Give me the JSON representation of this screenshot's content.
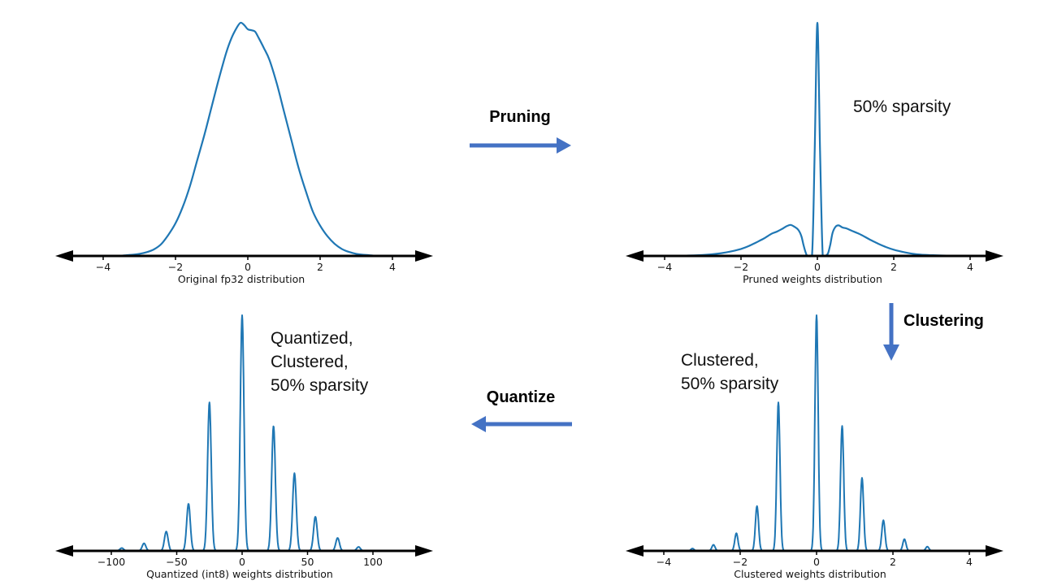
{
  "page": {
    "background": "#ffffff"
  },
  "colors": {
    "curve": "#1f77b4",
    "flow_arrow": "#4472c4",
    "axis": "#000000",
    "text": "#111111"
  },
  "flow": {
    "pruning_label": "Pruning",
    "clustering_label": "Clustering",
    "quantize_label": "Quantize"
  },
  "chart_data": [
    {
      "id": "original_fp32",
      "type": "line",
      "title": "Original fp32 distribution",
      "xlabel": "Original fp32 distribution",
      "xtick_values": [
        -4,
        -2,
        0,
        2,
        4
      ],
      "xtick_labels": [
        "−4",
        "−2",
        "0",
        "2",
        "4"
      ],
      "xlim": [
        -4.8,
        4.8
      ],
      "ylim": [
        0,
        1.05
      ],
      "grid": false,
      "legend": "none",
      "points": [
        [
          -4.5,
          0
        ],
        [
          -3.6,
          0.001
        ],
        [
          -3.3,
          0.004
        ],
        [
          -3.0,
          0.009
        ],
        [
          -2.8,
          0.016
        ],
        [
          -2.6,
          0.028
        ],
        [
          -2.4,
          0.05
        ],
        [
          -2.2,
          0.09
        ],
        [
          -2.0,
          0.14
        ],
        [
          -1.8,
          0.21
        ],
        [
          -1.6,
          0.3
        ],
        [
          -1.4,
          0.41
        ],
        [
          -1.2,
          0.52
        ],
        [
          -1.0,
          0.64
        ],
        [
          -0.8,
          0.76
        ],
        [
          -0.6,
          0.87
        ],
        [
          -0.45,
          0.935
        ],
        [
          -0.3,
          0.98
        ],
        [
          -0.2,
          1.0
        ],
        [
          -0.1,
          0.99
        ],
        [
          0.0,
          0.972
        ],
        [
          0.1,
          0.968
        ],
        [
          0.2,
          0.962
        ],
        [
          0.3,
          0.935
        ],
        [
          0.45,
          0.89
        ],
        [
          0.6,
          0.84
        ],
        [
          0.8,
          0.74
        ],
        [
          1.0,
          0.62
        ],
        [
          1.2,
          0.5
        ],
        [
          1.4,
          0.38
        ],
        [
          1.6,
          0.28
        ],
        [
          1.8,
          0.19
        ],
        [
          2.0,
          0.13
        ],
        [
          2.2,
          0.085
        ],
        [
          2.4,
          0.052
        ],
        [
          2.6,
          0.03
        ],
        [
          2.8,
          0.017
        ],
        [
          3.0,
          0.009
        ],
        [
          3.3,
          0.004
        ],
        [
          3.6,
          0.001
        ],
        [
          4.5,
          0
        ]
      ]
    },
    {
      "id": "pruned",
      "type": "line",
      "title": "Pruned weights distribution",
      "xlabel": "Pruned weights distribution",
      "annotation": "50% sparsity",
      "xtick_values": [
        -4,
        -2,
        0,
        2,
        4
      ],
      "xtick_labels": [
        "−4",
        "−2",
        "0",
        "2",
        "4"
      ],
      "xlim": [
        -5,
        5
      ],
      "ylim": [
        0,
        1.05
      ],
      "grid": false,
      "legend": "none",
      "points": [
        [
          -4.6,
          0
        ],
        [
          -3.5,
          0.001
        ],
        [
          -3.0,
          0.004
        ],
        [
          -2.6,
          0.01
        ],
        [
          -2.3,
          0.018
        ],
        [
          -2.0,
          0.03
        ],
        [
          -1.8,
          0.042
        ],
        [
          -1.6,
          0.058
        ],
        [
          -1.4,
          0.075
        ],
        [
          -1.2,
          0.095
        ],
        [
          -1.05,
          0.105
        ],
        [
          -0.9,
          0.118
        ],
        [
          -0.8,
          0.128
        ],
        [
          -0.7,
          0.133
        ],
        [
          -0.6,
          0.125
        ],
        [
          -0.5,
          0.112
        ],
        [
          -0.42,
          0.085
        ],
        [
          -0.36,
          0.045
        ],
        [
          -0.3,
          0.012
        ],
        [
          -0.26,
          0.001
        ],
        [
          -0.14,
          0.001
        ],
        [
          -0.07,
          0.45
        ],
        [
          0.0,
          1.0
        ],
        [
          0.07,
          0.45
        ],
        [
          0.14,
          0.001
        ],
        [
          0.22,
          0.001
        ],
        [
          0.28,
          0.012
        ],
        [
          0.34,
          0.05
        ],
        [
          0.4,
          0.1
        ],
        [
          0.48,
          0.126
        ],
        [
          0.56,
          0.131
        ],
        [
          0.66,
          0.122
        ],
        [
          0.76,
          0.118
        ],
        [
          0.9,
          0.108
        ],
        [
          1.05,
          0.098
        ],
        [
          1.2,
          0.086
        ],
        [
          1.4,
          0.068
        ],
        [
          1.6,
          0.052
        ],
        [
          1.8,
          0.038
        ],
        [
          2.0,
          0.027
        ],
        [
          2.3,
          0.015
        ],
        [
          2.6,
          0.007
        ],
        [
          3.0,
          0.003
        ],
        [
          3.5,
          0.001
        ],
        [
          4.6,
          0
        ]
      ]
    },
    {
      "id": "quantized_int8",
      "type": "peaks",
      "title": "Quantized (int8) weights distribution",
      "xlabel": "Quantized (int8) weights distribution",
      "annotation": "Quantized,\nClustered,\n50% sparsity",
      "xtick_values": [
        -100,
        -50,
        0,
        50,
        100
      ],
      "xtick_labels": [
        "−100",
        "−50",
        "0",
        "50",
        "100"
      ],
      "xlim": [
        -125,
        125
      ],
      "ylim": [
        0,
        1.05
      ],
      "grid": false,
      "legend": "none",
      "sigma": 1.4,
      "peaks": [
        [
          -92,
          0.012
        ],
        [
          -75,
          0.032
        ],
        [
          -58,
          0.082
        ],
        [
          -41,
          0.2
        ],
        [
          -25,
          0.63
        ],
        [
          0,
          1.0
        ],
        [
          24,
          0.53
        ],
        [
          40,
          0.33
        ],
        [
          56,
          0.145
        ],
        [
          73,
          0.055
        ],
        [
          89,
          0.017
        ]
      ]
    },
    {
      "id": "clustered",
      "type": "peaks",
      "title": "Clustered weights distribution",
      "xlabel": "Clustered weights distribution",
      "annotation": "Clustered,\n50% sparsity",
      "xtick_values": [
        -4,
        -2,
        0,
        2,
        4
      ],
      "xtick_labels": [
        "−4",
        "−2",
        "0",
        "2",
        "4"
      ],
      "xlim": [
        -4.5,
        4.5
      ],
      "ylim": [
        0,
        1.05
      ],
      "grid": false,
      "legend": "none",
      "sigma": 0.042,
      "peaks": [
        [
          -3.25,
          0.01
        ],
        [
          -2.7,
          0.026
        ],
        [
          -2.1,
          0.075
        ],
        [
          -1.56,
          0.19
        ],
        [
          -1.0,
          0.63
        ],
        [
          0,
          1.0
        ],
        [
          0.67,
          0.53
        ],
        [
          1.19,
          0.31
        ],
        [
          1.75,
          0.13
        ],
        [
          2.3,
          0.05
        ],
        [
          2.9,
          0.018
        ]
      ]
    }
  ]
}
